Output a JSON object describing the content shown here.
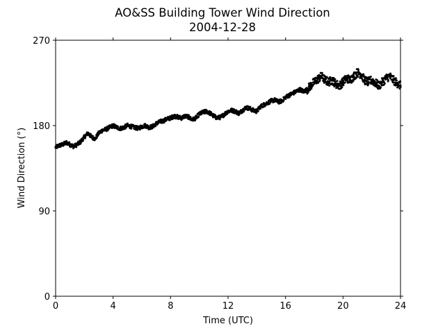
{
  "chart_data": {
    "type": "scatter",
    "title": "AO&SS Building Tower Wind Direction",
    "subtitle": "2004-12-28",
    "xlabel": "Time (UTC)",
    "ylabel": "Wind Direction (°)",
    "xlim": [
      0,
      24
    ],
    "ylim": [
      0,
      270
    ],
    "xticks": [
      0,
      4,
      8,
      12,
      16,
      20,
      24
    ],
    "xtick_labels": [
      "0",
      "4",
      "8",
      "12",
      "16",
      "20",
      "24"
    ],
    "yticks": [
      0,
      90,
      180,
      270
    ],
    "ytick_labels": [
      "0",
      "90",
      "180",
      "270"
    ],
    "grid": false,
    "marker_color": "#000000",
    "series": [
      {
        "x": [
          0.0,
          0.25,
          0.5,
          0.75,
          1.0,
          1.25,
          1.5,
          1.75,
          2.0,
          2.25,
          2.5,
          2.75,
          3.0,
          3.25,
          3.5,
          3.75,
          4.0,
          4.25,
          4.5,
          4.75,
          5.0,
          5.25,
          5.5,
          5.75,
          6.0,
          6.25,
          6.5,
          6.75,
          7.0,
          7.25,
          7.5,
          7.75,
          8.0,
          8.25,
          8.5,
          8.75,
          9.0,
          9.25,
          9.5,
          9.75,
          10.0,
          10.25,
          10.5,
          10.75,
          11.0,
          11.25,
          11.5,
          11.75,
          12.0,
          12.25,
          12.5,
          12.75,
          13.0,
          13.25,
          13.5,
          13.75,
          14.0,
          14.25,
          14.5,
          14.75,
          15.0,
          15.25,
          15.5,
          15.75,
          16.0,
          16.25,
          16.5,
          16.75,
          17.0,
          17.25,
          17.5,
          17.75,
          18.0,
          18.25,
          18.5,
          18.75,
          19.0,
          19.25,
          19.5,
          19.75,
          20.0,
          20.25,
          20.5,
          20.75,
          21.0,
          21.25,
          21.5,
          21.75,
          22.0,
          22.25,
          22.5,
          22.75,
          23.0,
          23.25,
          23.5,
          23.75,
          24.0
        ],
        "values": [
          157,
          159,
          160,
          162,
          160,
          158,
          160,
          163,
          168,
          172,
          168,
          166,
          172,
          175,
          176,
          178,
          180,
          178,
          177,
          178,
          180,
          179,
          178,
          177,
          179,
          180,
          178,
          179,
          182,
          184,
          185,
          187,
          188,
          190,
          189,
          188,
          190,
          189,
          186,
          188,
          192,
          194,
          195,
          193,
          190,
          188,
          189,
          192,
          195,
          196,
          195,
          193,
          196,
          199,
          198,
          196,
          195,
          200,
          202,
          204,
          206,
          207,
          205,
          206,
          210,
          212,
          214,
          216,
          218,
          216,
          218,
          222,
          226,
          229,
          232,
          228,
          226,
          228,
          224,
          222,
          226,
          230,
          228,
          232,
          236,
          234,
          228,
          226,
          228,
          225,
          222,
          226,
          230,
          232,
          228,
          225,
          222
        ]
      }
    ]
  }
}
